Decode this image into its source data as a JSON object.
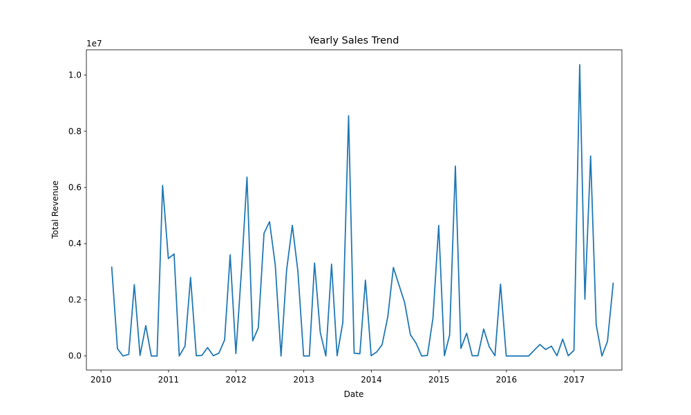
{
  "chart_data": {
    "type": "line",
    "title": "Yearly Sales Trend",
    "xlabel": "Date",
    "ylabel": "Total Revenue",
    "y_offset_label": "1e7",
    "x_axis": {
      "scale": "time",
      "range": [
        "2009-10-14",
        "2017-09-16"
      ],
      "ticks": [
        "2010-01-01",
        "2011-01-01",
        "2012-01-01",
        "2013-01-01",
        "2014-01-01",
        "2015-01-01",
        "2016-01-01",
        "2017-01-01"
      ],
      "tick_labels": [
        "2010",
        "2011",
        "2012",
        "2013",
        "2014",
        "2015",
        "2016",
        "2017"
      ]
    },
    "y_axis": {
      "range": [
        -0.05,
        1.09
      ],
      "ticks": [
        0.0,
        0.2,
        0.4,
        0.6,
        0.8,
        1.0
      ],
      "tick_labels": [
        "0.0",
        "0.2",
        "0.4",
        "0.6",
        "0.8",
        "1.0"
      ]
    },
    "grid": false,
    "line_color": "#1f77b4",
    "series": [
      {
        "x": [
          "2010-02-28",
          "2010-03-31",
          "2010-04-30",
          "2010-05-31",
          "2010-06-30",
          "2010-07-31",
          "2010-08-31",
          "2010-09-30",
          "2010-10-31",
          "2010-11-30",
          "2010-12-31",
          "2011-01-31",
          "2011-02-28",
          "2011-03-31",
          "2011-04-30",
          "2011-05-31",
          "2011-06-30",
          "2011-07-31",
          "2011-08-31",
          "2011-09-30",
          "2011-10-31",
          "2011-11-30",
          "2011-12-31",
          "2012-01-31",
          "2012-02-29",
          "2012-03-31",
          "2012-04-30",
          "2012-05-31",
          "2012-06-30",
          "2012-07-31",
          "2012-08-31",
          "2012-09-30",
          "2012-10-31",
          "2012-11-30",
          "2012-12-31",
          "2013-01-31",
          "2013-02-28",
          "2013-03-31",
          "2013-04-30",
          "2013-05-31",
          "2013-06-30",
          "2013-07-31",
          "2013-08-31",
          "2013-09-30",
          "2013-10-31",
          "2013-11-30",
          "2013-12-31",
          "2014-01-31",
          "2014-02-28",
          "2014-03-31",
          "2014-04-30",
          "2014-06-30",
          "2014-07-31",
          "2014-08-31",
          "2014-09-30",
          "2014-10-31",
          "2014-11-30",
          "2014-12-31",
          "2015-01-31",
          "2015-02-28",
          "2015-03-31",
          "2015-04-30",
          "2015-05-31",
          "2015-06-30",
          "2015-07-31",
          "2015-08-31",
          "2015-09-30",
          "2015-10-31",
          "2015-11-30",
          "2015-12-31",
          "2016-01-31",
          "2016-02-29",
          "2016-04-30",
          "2016-05-31",
          "2016-06-30",
          "2016-07-31",
          "2016-08-31",
          "2016-09-30",
          "2016-10-31",
          "2016-11-30",
          "2016-12-31",
          "2017-01-31",
          "2017-02-28",
          "2017-03-31",
          "2017-04-30",
          "2017-05-31",
          "2017-06-30",
          "2017-07-31"
        ],
        "values": [
          0.316,
          0.026,
          0.0,
          0.006,
          0.254,
          0.002,
          0.108,
          0.0,
          0.0,
          0.607,
          0.347,
          0.363,
          0.0,
          0.035,
          0.28,
          0.001,
          0.002,
          0.03,
          0.001,
          0.01,
          0.057,
          0.36,
          0.009,
          0.312,
          0.637,
          0.054,
          0.1,
          0.437,
          0.478,
          0.322,
          0.0,
          0.305,
          0.465,
          0.302,
          0.0,
          0.0,
          0.331,
          0.084,
          0.0,
          0.327,
          0.001,
          0.12,
          0.855,
          0.01,
          0.008,
          0.27,
          0.001,
          0.015,
          0.04,
          0.14,
          0.315,
          0.19,
          0.076,
          0.045,
          0.0,
          0.002,
          0.135,
          0.465,
          0.001,
          0.075,
          0.676,
          0.027,
          0.081,
          0.001,
          0.001,
          0.096,
          0.033,
          0.001,
          0.256,
          0.0,
          0.0,
          0.0,
          0.0,
          0.021,
          0.041,
          0.023,
          0.035,
          0.001,
          0.06,
          0.001,
          0.02,
          1.037,
          0.202,
          0.712,
          0.112,
          0.0,
          0.052,
          0.259
        ]
      }
    ]
  }
}
